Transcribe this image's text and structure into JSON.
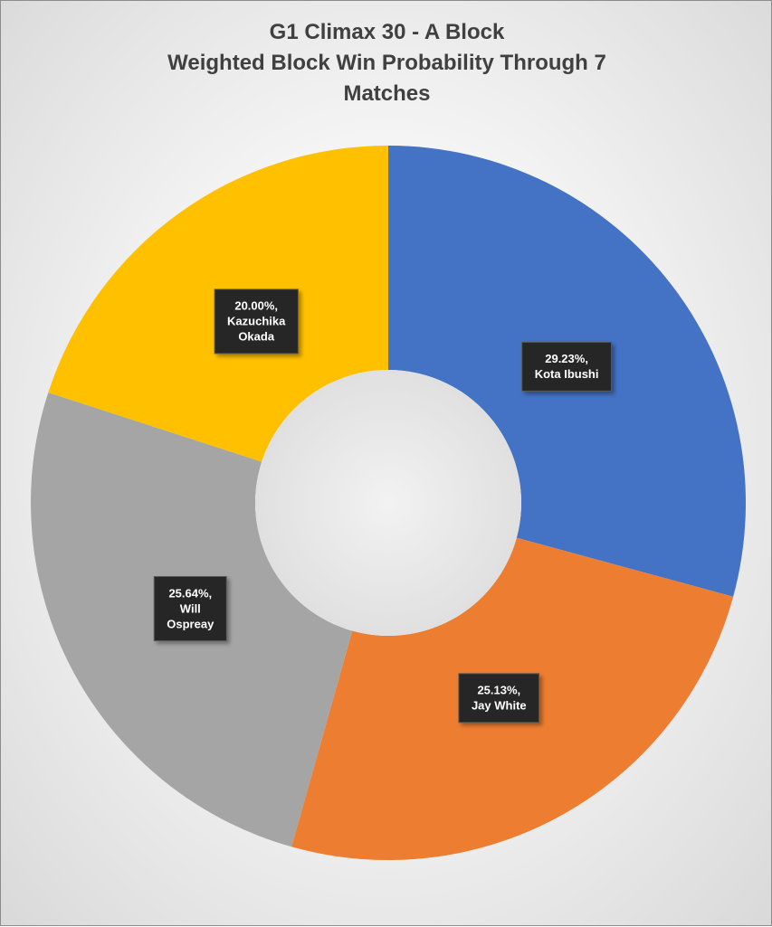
{
  "chart_data": {
    "type": "pie",
    "variant": "doughnut",
    "title_lines": [
      "G1 Climax 30 - A Block",
      "Weighted Block Win Probability Through 7",
      "Matches"
    ],
    "slices": [
      {
        "name": "Kota Ibushi",
        "value": 29.23,
        "label_lines": [
          "29.23%,",
          "Kota Ibushi"
        ],
        "color": "#4472C4"
      },
      {
        "name": "Jay White",
        "value": 25.13,
        "label_lines": [
          "25.13%,",
          "Jay White"
        ],
        "color": "#ED7D31"
      },
      {
        "name": "Will Ospreay",
        "value": 25.64,
        "label_lines": [
          "25.64%,",
          "Will",
          "Ospreay"
        ],
        "color": "#A5A5A5"
      },
      {
        "name": "Kazuchika Okada",
        "value": 20.0,
        "label_lines": [
          "20.00%,",
          "Kazuchika",
          "Okada"
        ],
        "color": "#FFC000"
      }
    ],
    "start_angle_deg": 0,
    "direction": "clockwise",
    "data_labels": "value-and-category",
    "legend": "none"
  }
}
